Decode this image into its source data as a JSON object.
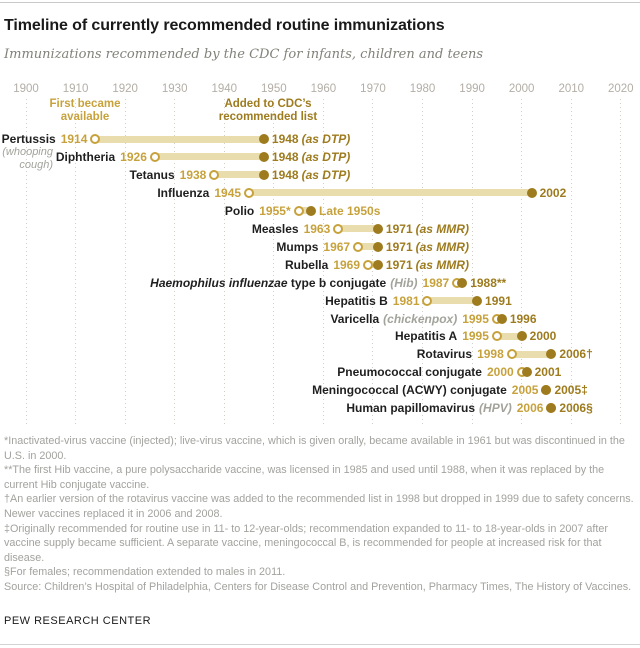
{
  "colors": {
    "gold_light": "#c7a23c",
    "gold_dark": "#9d7b1e",
    "bar": "#e9ddad",
    "axis_gray": "#b3aea6",
    "footnote_gray": "#a2a29e"
  },
  "header": {
    "title": "Timeline of currently recommended routine immunizations",
    "subtitle": "Immunizations recommended by the CDC for infants, children and teens"
  },
  "chart_data": {
    "type": "bar",
    "variant": "horizontal-range-timeline",
    "title": "Timeline of currently recommended routine immunizations",
    "x_axis": {
      "range": [
        1900,
        2020
      ],
      "ticks": [
        "1900",
        "1910",
        "1920",
        "1930",
        "1940",
        "1950",
        "1960",
        "1970",
        "1980",
        "1990",
        "2000",
        "2010",
        "2020"
      ],
      "grid": "dotted-vertical"
    },
    "annotations": {
      "start_label": "First became\navailable",
      "start_label_year_anchor": 1912,
      "added_label": "Added to CDC’s\nrecommended list",
      "added_label_year_anchor": 1949
    },
    "rows": [
      {
        "name": "Pertussis",
        "sub": "(whooping\ncough)",
        "start_label": "1914",
        "start": 1914,
        "end": 1948,
        "end_label": "1948",
        "end_suffix": "(as DTP)"
      },
      {
        "name": "Diphtheria",
        "start_label": "1926",
        "start": 1926,
        "end": 1948,
        "end_label": "1948",
        "end_suffix": "(as DTP)"
      },
      {
        "name": "Tetanus",
        "start_label": "1938",
        "start": 1938,
        "end": 1948,
        "end_label": "1948",
        "end_suffix": "(as DTP)"
      },
      {
        "name": "Influenza",
        "start_label": "1945",
        "start": 1945,
        "end": 2002,
        "end_label": "2002"
      },
      {
        "name": "Polio",
        "start_label": "1955*",
        "start": 1955,
        "end": 1957.5,
        "end_label": "Late 1950s",
        "end_light": true
      },
      {
        "name": "Measles",
        "start_label": "1963",
        "start": 1963,
        "end": 1971,
        "end_label": "1971",
        "end_suffix": "(as MMR)"
      },
      {
        "name": "Mumps",
        "start_label": "1967",
        "start": 1967,
        "end": 1971,
        "end_label": "1971",
        "end_suffix": "(as MMR)"
      },
      {
        "name": "Rubella",
        "start_label": "1969",
        "start": 1969,
        "end": 1971,
        "end_label": "1971",
        "end_suffix": "(as MMR)"
      },
      {
        "name_italic": "Haemophilus influenzae",
        "name": " type b conjugate",
        "paren": "(Hib)",
        "start_label": "1987",
        "start": 1987,
        "end": 1988,
        "end_label": "1988**"
      },
      {
        "name": "Hepatitis B",
        "start_label": "1981",
        "start": 1981,
        "end": 1991,
        "end_label": "1991"
      },
      {
        "name": "Varicella",
        "paren": "(chickenpox)",
        "start_label": "1995",
        "start": 1995,
        "end": 1996,
        "end_label": "1996"
      },
      {
        "name": "Hepatitis A",
        "start_label": "1995",
        "start": 1995,
        "end": 2000,
        "end_label": "2000"
      },
      {
        "name": "Rotavirus",
        "start_label": "1998",
        "start": 1998,
        "end": 2006,
        "end_label": "2006†"
      },
      {
        "name": "Pneumococcal conjugate",
        "start_label": "2000",
        "start": 2000,
        "end": 2001,
        "end_label": "2001"
      },
      {
        "name": "Meningococcal (ACWY) conjugate",
        "start_label": "2005",
        "start": 2005,
        "end": 2005,
        "end_label": "2005‡"
      },
      {
        "name": "Human papillomavirus",
        "paren": "(HPV)",
        "start_label": "2006",
        "start": 2006,
        "end": 2006,
        "end_label": "2006§"
      }
    ]
  },
  "footnotes": [
    "*Inactivated-virus vaccine (injected); live-virus vaccine, which is given orally, became available in 1961 but was discontinued in the U.S. in 2000.",
    "**The first Hib vaccine, a pure polysaccharide vaccine, was licensed in 1985 and used until 1988, when it was replaced by the current Hib conjugate vaccine.",
    "†An earlier version of the rotavirus vaccine was added to the recommended list in 1998 but dropped in 1999 due to safety concerns. Newer vaccines replaced it in 2006 and 2008.",
    "‡Originally recommended for routine use in 11- to 12-year-olds; recommendation expanded to 11- to 18-year-olds in 2007 after vaccine supply became sufficient. A separate vaccine, meningococcal B, is recommended for people at increased risk for that disease.",
    "§For females; recommendation extended to males in 2011.",
    "Source: Children’s Hospital of Philadelphia, Centers for Disease Control and Prevention, Pharmacy Times, The History of Vaccines."
  ],
  "footer": "PEW RESEARCH CENTER"
}
